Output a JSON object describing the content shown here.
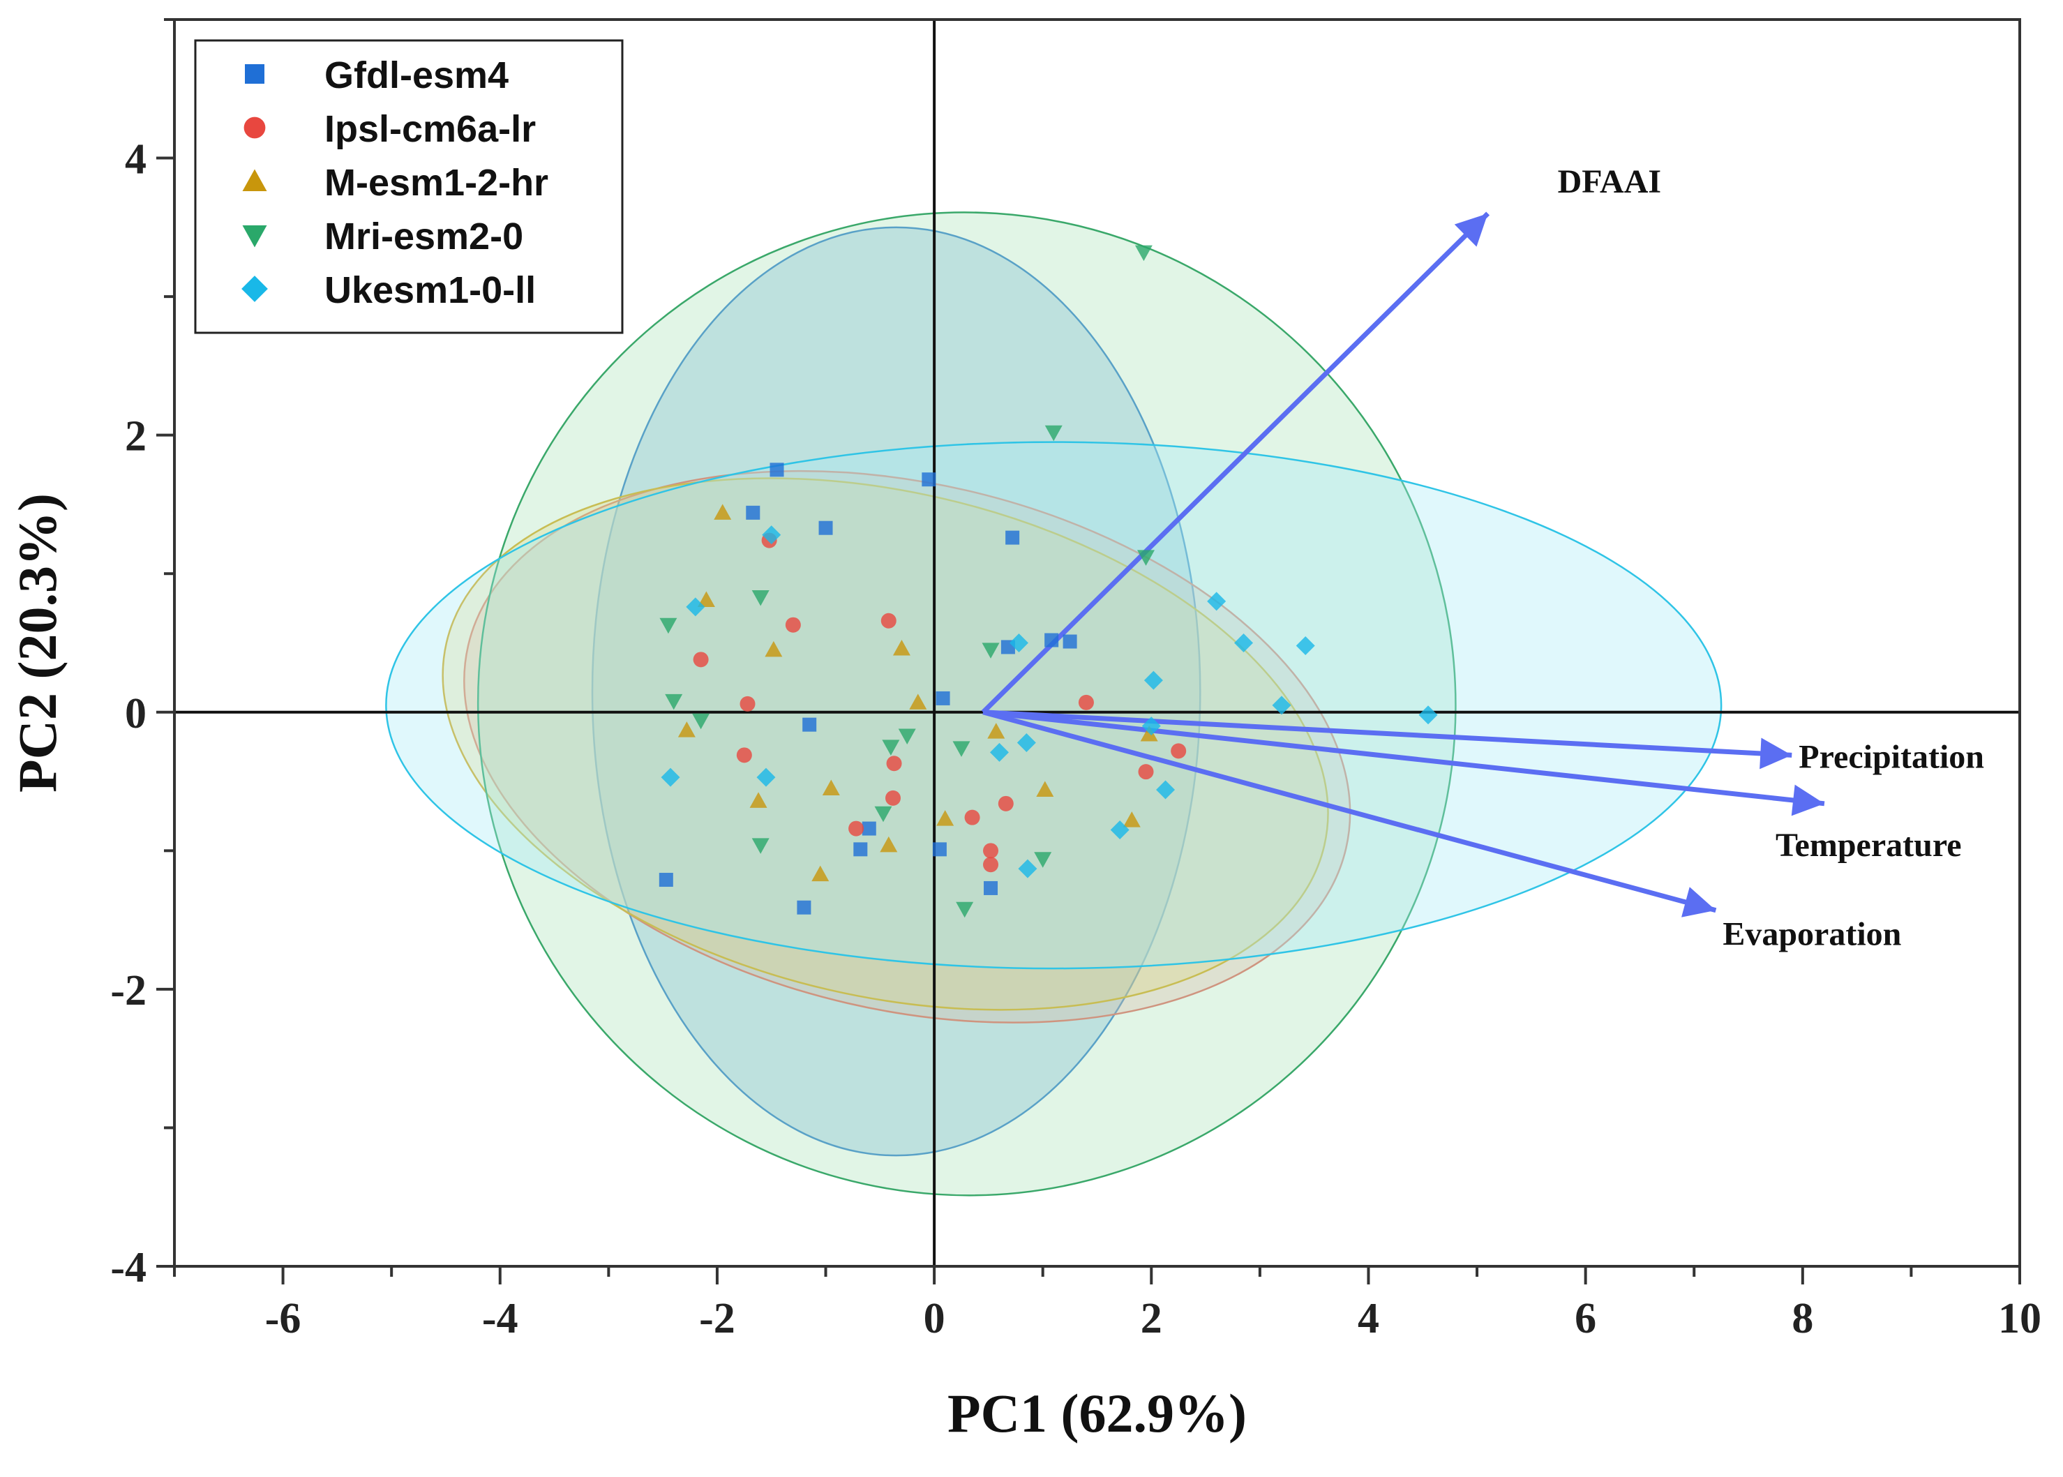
{
  "chart_data": {
    "type": "scatter",
    "subtype": "pca-biplot",
    "title": "",
    "xlabel": "PC1 (62.9%)",
    "ylabel": "PC2 (20.3%)",
    "xlim": [
      -7,
      10
    ],
    "ylim": [
      -4,
      5
    ],
    "x_ticks": [
      "-6",
      "-4",
      "-2",
      "0",
      "2",
      "4",
      "6",
      "8",
      "10"
    ],
    "y_ticks": [
      "4",
      "2",
      "0",
      "-2",
      "-4"
    ],
    "grid": false,
    "legend_position": "top-left",
    "series": [
      {
        "name": "Gfdl-esm4",
        "marker": "square",
        "color": "#1f6fd6",
        "points": [
          [
            -1.45,
            1.75
          ],
          [
            -1.67,
            1.44
          ],
          [
            -1.0,
            1.33
          ],
          [
            -0.05,
            1.68
          ],
          [
            0.72,
            1.26
          ],
          [
            1.08,
            0.52
          ],
          [
            1.25,
            0.51
          ],
          [
            0.68,
            0.47
          ],
          [
            0.08,
            0.1
          ],
          [
            -1.15,
            -0.09
          ],
          [
            -0.6,
            -0.84
          ],
          [
            -0.68,
            -0.99
          ],
          [
            0.05,
            -0.99
          ],
          [
            0.52,
            -1.27
          ],
          [
            -1.2,
            -1.41
          ],
          [
            -2.47,
            -1.21
          ]
        ]
      },
      {
        "name": "Ipsl-cm6a-lr",
        "marker": "circle",
        "color": "#e8473f",
        "points": [
          [
            -1.52,
            1.24
          ],
          [
            -1.3,
            0.63
          ],
          [
            -0.42,
            0.66
          ],
          [
            -2.15,
            0.38
          ],
          [
            -1.72,
            0.06
          ],
          [
            -1.75,
            -0.31
          ],
          [
            -0.37,
            -0.37
          ],
          [
            -0.38,
            -0.62
          ],
          [
            -0.72,
            -0.84
          ],
          [
            0.35,
            -0.76
          ],
          [
            0.52,
            -1.0
          ],
          [
            0.52,
            -1.1
          ],
          [
            0.66,
            -0.66
          ],
          [
            1.4,
            0.07
          ],
          [
            1.95,
            -0.43
          ],
          [
            2.25,
            -0.28
          ]
        ]
      },
      {
        "name": "M-esm1-2-hr",
        "marker": "triangle-up",
        "color": "#c8960c",
        "points": [
          [
            -1.95,
            1.44
          ],
          [
            -2.1,
            0.81
          ],
          [
            -1.48,
            0.45
          ],
          [
            -0.3,
            0.46
          ],
          [
            -0.15,
            0.07
          ],
          [
            -2.28,
            -0.13
          ],
          [
            -1.62,
            -0.64
          ],
          [
            -0.95,
            -0.55
          ],
          [
            -1.05,
            -1.17
          ],
          [
            -0.42,
            -0.96
          ],
          [
            0.1,
            -0.77
          ],
          [
            0.57,
            -0.14
          ],
          [
            1.02,
            -0.56
          ],
          [
            1.82,
            -0.78
          ],
          [
            1.98,
            -0.16
          ]
        ]
      },
      {
        "name": "Mri-esm2-0",
        "marker": "triangle-down",
        "color": "#2aa86a",
        "points": [
          [
            1.93,
            3.32
          ],
          [
            1.1,
            2.02
          ],
          [
            1.95,
            1.12
          ],
          [
            -1.6,
            0.83
          ],
          [
            -2.45,
            0.63
          ],
          [
            -2.4,
            0.08
          ],
          [
            -2.15,
            -0.06
          ],
          [
            -0.4,
            -0.25
          ],
          [
            -0.25,
            -0.17
          ],
          [
            0.25,
            -0.26
          ],
          [
            0.52,
            0.45
          ],
          [
            -1.6,
            -0.96
          ],
          [
            -0.47,
            -0.73
          ],
          [
            0.28,
            -1.42
          ],
          [
            1.0,
            -1.06
          ]
        ]
      },
      {
        "name": "Ukesm1-0-ll",
        "marker": "diamond",
        "color": "#19b8e8",
        "points": [
          [
            -1.5,
            1.28
          ],
          [
            -2.2,
            0.76
          ],
          [
            -1.55,
            -0.47
          ],
          [
            -2.43,
            -0.47
          ],
          [
            0.78,
            0.5
          ],
          [
            2.6,
            0.8
          ],
          [
            2.85,
            0.5
          ],
          [
            3.42,
            0.48
          ],
          [
            2.02,
            0.23
          ],
          [
            3.2,
            0.05
          ],
          [
            4.55,
            -0.02
          ],
          [
            0.6,
            -0.29
          ],
          [
            0.85,
            -0.22
          ],
          [
            2.0,
            -0.1
          ],
          [
            2.13,
            -0.56
          ],
          [
            1.71,
            -0.85
          ],
          [
            0.86,
            -1.13
          ]
        ]
      }
    ],
    "ellipses": [
      {
        "series": "Gfdl-esm4",
        "cx": -0.35,
        "cy": 0.15,
        "rx": 2.8,
        "ry": 3.35,
        "angle_deg": 0,
        "fill": "#4f9ad8",
        "stroke": "#2f7fd0",
        "opacity": 0.3
      },
      {
        "series": "Ipsl-cm6a-lr",
        "cx": -0.25,
        "cy": -0.25,
        "rx": 4.15,
        "ry": 1.9,
        "angle_deg": -13,
        "fill": "#f39a94",
        "stroke": "#e36a62",
        "opacity": 0.3
      },
      {
        "series": "M-esm1-2-hr",
        "cx": -0.45,
        "cy": -0.23,
        "rx": 4.15,
        "ry": 1.82,
        "angle_deg": -13,
        "fill": "#f4d062",
        "stroke": "#d9aa1e",
        "opacity": 0.3
      },
      {
        "series": "Mri-esm2-0",
        "cx": 0.3,
        "cy": 0.06,
        "rx": 4.5,
        "ry": 3.55,
        "angle_deg": 18,
        "fill": "#a8e3b8",
        "stroke": "#3aa86a",
        "opacity": 0.35
      },
      {
        "series": "Ukesm1-0-ll",
        "cx": 1.1,
        "cy": 0.05,
        "rx": 6.15,
        "ry": 1.9,
        "angle_deg": 0,
        "fill": "#a7ecf6",
        "stroke": "#2fc4e6",
        "opacity": 0.35
      }
    ],
    "loadings": [
      {
        "name": "DFAAI",
        "x": 5.1,
        "y": 3.6
      },
      {
        "name": "Precipitation",
        "x": 7.9,
        "y": -0.31
      },
      {
        "name": "Temperature",
        "x": 8.2,
        "y": -0.66
      },
      {
        "name": "Evaporation",
        "x": 7.2,
        "y": -1.43
      }
    ],
    "loadings_origin": [
      0.45,
      0.0
    ],
    "loading_color": "#5b6ef2"
  }
}
